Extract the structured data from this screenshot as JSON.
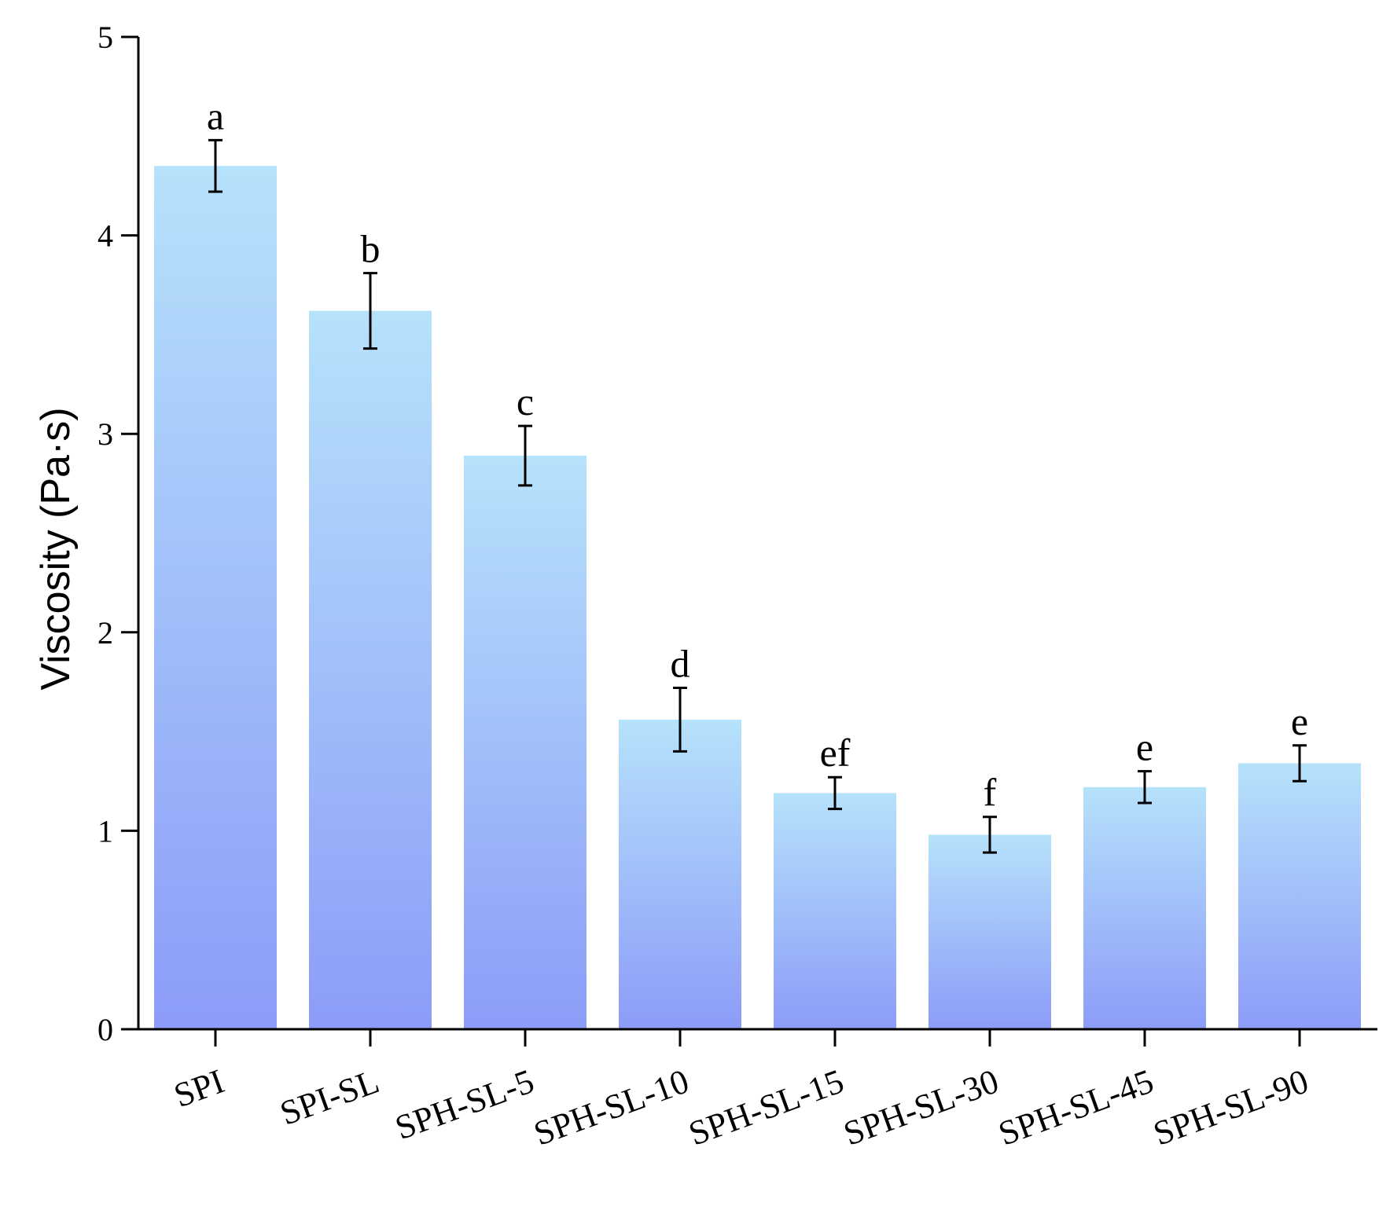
{
  "chart_data": {
    "type": "bar",
    "title": "",
    "xlabel": "",
    "ylabel": "Viscosity (Pa·s)",
    "ylim": [
      0,
      5
    ],
    "yticks": [
      "0",
      "1",
      "2",
      "3",
      "4",
      "5"
    ],
    "grid": false,
    "categories": [
      "SPI",
      "SPI-SL",
      "SPH-SL-5",
      "SPH-SL-10",
      "SPH-SL-15",
      "SPH-SL-30",
      "SPH-SL-45",
      "SPH-SL-90"
    ],
    "values": [
      4.35,
      3.62,
      2.89,
      1.56,
      1.19,
      0.98,
      1.22,
      1.34
    ],
    "errors": [
      0.13,
      0.19,
      0.15,
      0.16,
      0.08,
      0.09,
      0.08,
      0.09
    ],
    "significance_labels": [
      "a",
      "b",
      "c",
      "d",
      "ef",
      "f",
      "e",
      "e"
    ],
    "colors": {
      "bar_top": "#b6e2fb",
      "bar_bottom": "#8c9cf8",
      "axis": "#000000"
    }
  }
}
